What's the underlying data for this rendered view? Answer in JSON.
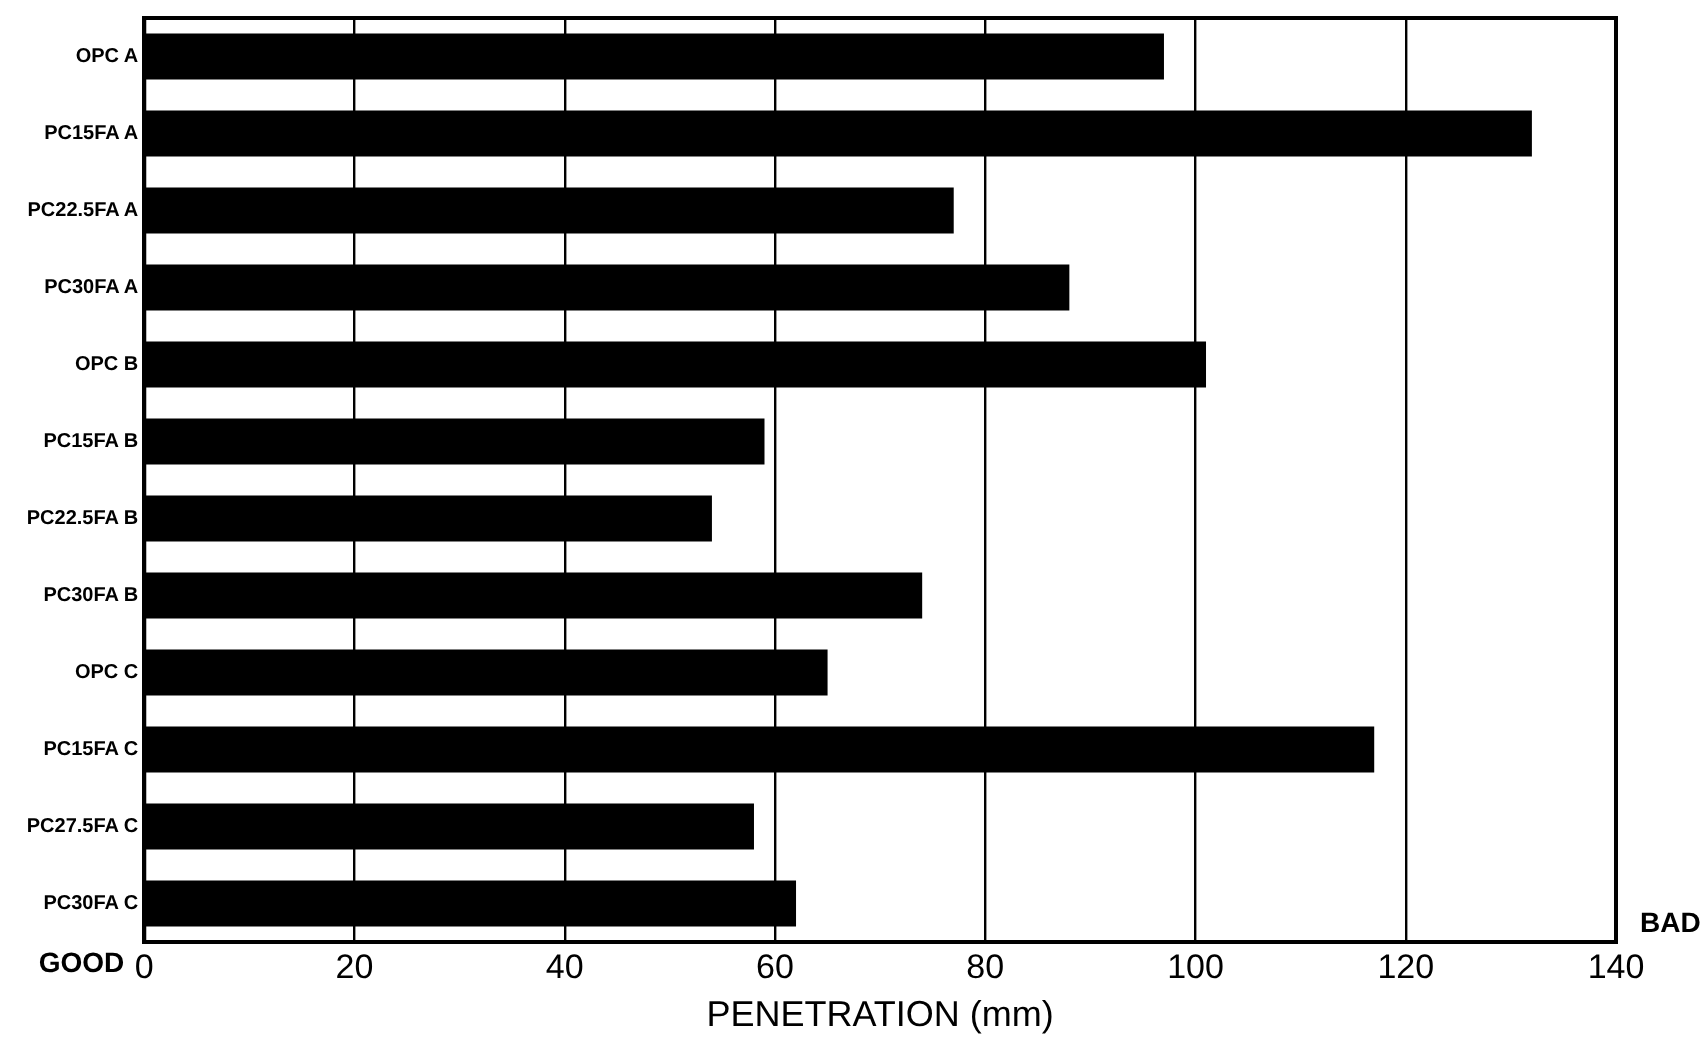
{
  "chart_data": {
    "type": "bar",
    "orientation": "horizontal",
    "xlabel": "PENETRATION (mm)",
    "categories": [
      "OPC A",
      "PC15FA A",
      "PC22.5FA A",
      "PC30FA A",
      "OPC B",
      "PC15FA B",
      "PC22.5FA B",
      "PC30FA B",
      "OPC C",
      "PC15FA C",
      "PC27.5FA C",
      "PC30FA C"
    ],
    "values": [
      97,
      132,
      77,
      88,
      101,
      59,
      54,
      74,
      65,
      117,
      58,
      62
    ],
    "color": "#000000",
    "xlim": [
      0,
      140
    ],
    "xticks": [
      0,
      20,
      40,
      60,
      80,
      100,
      120,
      140
    ],
    "grid": "x",
    "legend": false,
    "annotations": [
      "GOOD",
      "BAD"
    ]
  }
}
